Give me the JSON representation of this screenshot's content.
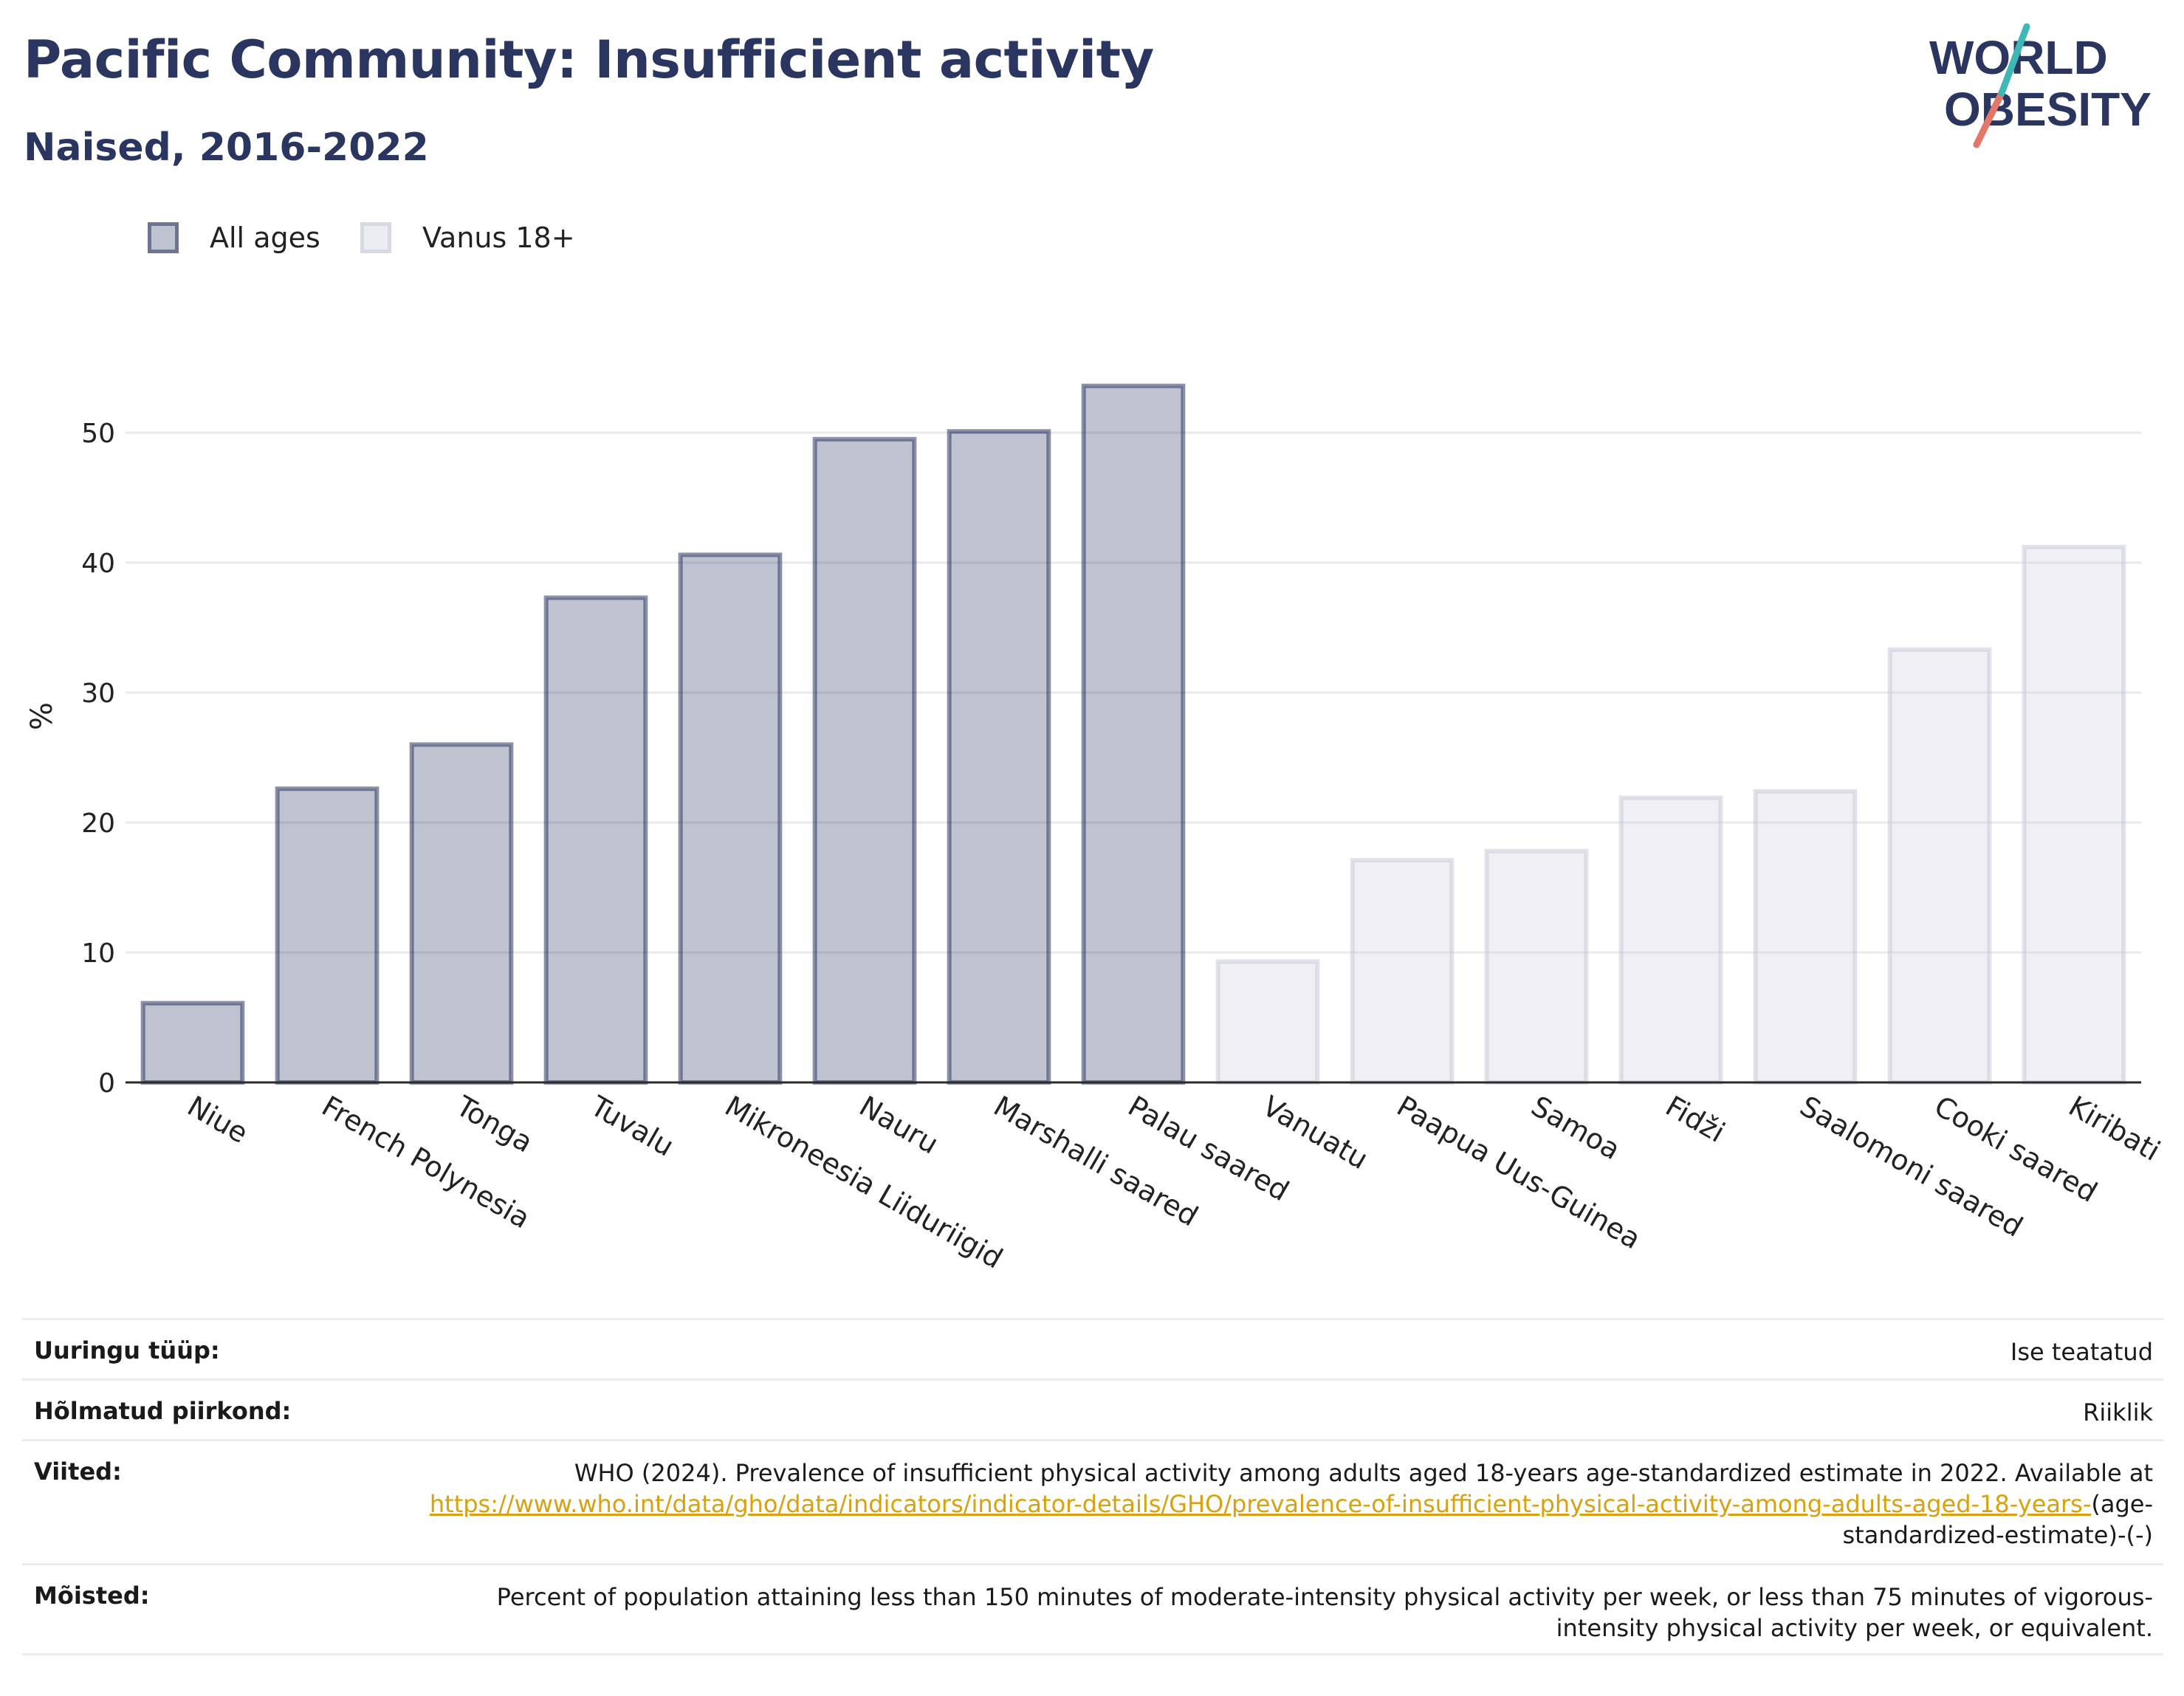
{
  "header": {
    "title": "Pacific Community: Insufficient activity",
    "subtitle": "Naised, 2016-2022"
  },
  "logo": {
    "line1": "WORLD",
    "line2": "OBESITY"
  },
  "legend": [
    {
      "label": "All ages",
      "color": "#2b3660"
    },
    {
      "label": "Vanus 18+",
      "color": "#c9cbd9"
    }
  ],
  "chart_data": {
    "type": "bar",
    "ylabel": "%",
    "xlabel": "",
    "ylim": [
      0,
      57
    ],
    "yticks": [
      0,
      10,
      20,
      30,
      40,
      50
    ],
    "grid": true,
    "legend_position": "top-left",
    "categories": [
      "Niue",
      "French Polynesia",
      "Tonga",
      "Tuvalu",
      "Mikroneesia Liiduriigid",
      "Nauru",
      "Marshalli saared",
      "Palau saared",
      "Vanuatu",
      "Paapua Uus-Guinea",
      "Samoa",
      "Fidži",
      "Saalomoni saared",
      "Cooki saared",
      "Kiribati"
    ],
    "series": [
      {
        "name": "All ages",
        "values": [
          6.1,
          22.6,
          26.0,
          37.3,
          40.6,
          49.5,
          50.1,
          53.6,
          null,
          null,
          null,
          null,
          null,
          null,
          null
        ]
      },
      {
        "name": "Vanus 18+",
        "values": [
          null,
          null,
          null,
          null,
          null,
          null,
          null,
          null,
          9.3,
          17.1,
          17.8,
          21.9,
          22.4,
          33.3,
          41.2
        ]
      }
    ]
  },
  "info": {
    "survey_type": {
      "label": "Uuringu tüüp:",
      "value": "Ise teatatud"
    },
    "coverage": {
      "label": "Hõlmatud piirkond:",
      "value": "Riiklik"
    },
    "references": {
      "label": "Viited:",
      "text": "WHO (2024). Prevalence of insufficient physical activity among adults aged 18-years age-standardized estimate in 2022. Available at",
      "link": "https://www.who.int/data/gho/data/indicators/indicator-details/GHO/prevalence-of-insufficient-physical-activity-among-adults-aged-18-years-",
      "suffix": "(age-standardized-estimate)-(-)"
    },
    "definitions": {
      "label": "Mõisted:",
      "value": "Percent of population attaining less than 150 minutes of moderate-intensity physical activity per week, or less than 75 minutes of vigorous-intensity physical activity per week, or equivalent."
    }
  }
}
